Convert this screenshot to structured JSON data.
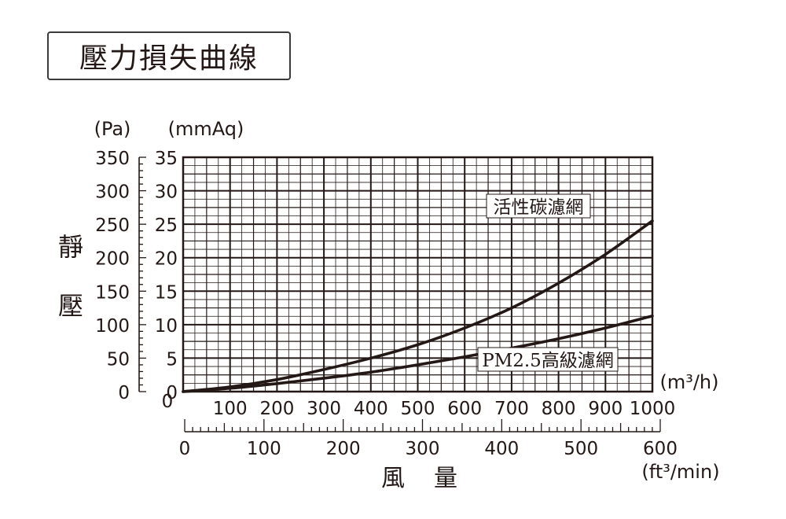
{
  "title": "壓力損失曲線",
  "chart_data": {
    "type": "line",
    "title": "壓力損失曲線",
    "ylabel": "靜壓",
    "xlabel": "風量",
    "y_units": [
      "(Pa)",
      "(mmAq)"
    ],
    "x_units": [
      "(m³/h)",
      "(ft³/min)"
    ],
    "x_m3h": {
      "ticks": [
        0,
        100,
        200,
        300,
        400,
        500,
        600,
        700,
        800,
        900,
        1000
      ],
      "range": [
        0,
        1000
      ]
    },
    "x_ftmin": {
      "ticks": [
        0,
        100,
        200,
        300,
        400,
        500,
        600
      ],
      "range": [
        0,
        600
      ]
    },
    "y_pa": {
      "ticks": [
        0,
        50,
        100,
        150,
        200,
        250,
        300,
        350
      ],
      "range": [
        0,
        350
      ]
    },
    "y_mmaq": {
      "ticks": [
        0,
        5,
        10,
        15,
        20,
        25,
        30,
        35
      ],
      "range": [
        0,
        35
      ]
    },
    "grid": true,
    "series": [
      {
        "name": "活性碳濾網",
        "x": [
          0,
          100,
          200,
          300,
          400,
          500,
          600,
          700,
          800,
          900,
          1000
        ],
        "y": [
          0,
          7,
          18,
          33,
          50,
          70,
          95,
          125,
          162,
          205,
          255
        ],
        "annotation_at_x": 700
      },
      {
        "name": "PM2.5高級濾網",
        "x": [
          0,
          100,
          200,
          300,
          400,
          500,
          600,
          700,
          800,
          900,
          1000
        ],
        "y": [
          0,
          5,
          12,
          20,
          29,
          40,
          52,
          65,
          79,
          95,
          113
        ],
        "annotation_at_x": 660
      }
    ],
    "colors": {
      "line": "#231815",
      "grid": "#231815",
      "background": "#ffffff"
    }
  }
}
